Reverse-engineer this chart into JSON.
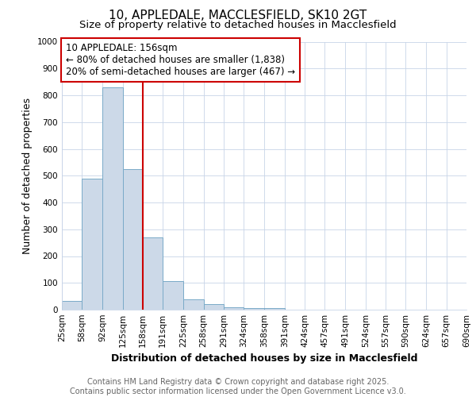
{
  "title_line1": "10, APPLEDALE, MACCLESFIELD, SK10 2GT",
  "title_line2": "Size of property relative to detached houses in Macclesfield",
  "xlabel": "Distribution of detached houses by size in Macclesfield",
  "ylabel": "Number of detached properties",
  "bar_edges": [
    25,
    58,
    92,
    125,
    158,
    191,
    225,
    258,
    291,
    324,
    358,
    391,
    424,
    457,
    491,
    524,
    557,
    590,
    624,
    657,
    690
  ],
  "bar_heights": [
    33,
    490,
    830,
    525,
    270,
    108,
    38,
    20,
    8,
    5,
    5,
    0,
    0,
    0,
    0,
    0,
    0,
    0,
    0,
    0
  ],
  "bar_color": "#ccd9e8",
  "bar_edge_color": "#7aaac8",
  "vline_x": 158,
  "vline_color": "#cc0000",
  "annotation_title": "10 APPLEDALE: 156sqm",
  "annotation_line1": "← 80% of detached houses are smaller (1,838)",
  "annotation_line2": "20% of semi-detached houses are larger (467) →",
  "annotation_box_edgecolor": "#cc0000",
  "ylim": [
    0,
    1000
  ],
  "yticks": [
    0,
    100,
    200,
    300,
    400,
    500,
    600,
    700,
    800,
    900,
    1000
  ],
  "bg_color": "#ffffff",
  "plot_bg_color": "#ffffff",
  "grid_color": "#c8d4e8",
  "footer_line1": "Contains HM Land Registry data © Crown copyright and database right 2025.",
  "footer_line2": "Contains public sector information licensed under the Open Government Licence v3.0.",
  "title_fontsize": 11,
  "subtitle_fontsize": 9.5,
  "axis_label_fontsize": 9,
  "tick_fontsize": 7.5,
  "annotation_fontsize": 8.5,
  "footer_fontsize": 7
}
